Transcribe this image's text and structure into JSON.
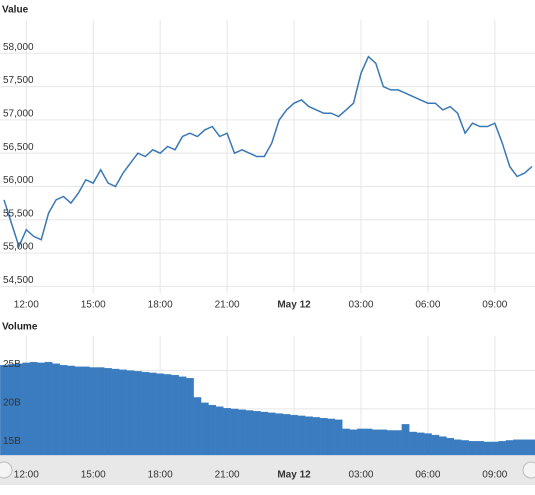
{
  "chart_data": [
    {
      "type": "line",
      "title": "Value",
      "categories": [
        null,
        null,
        null,
        "12:00",
        null,
        null,
        null,
        null,
        null,
        null,
        null,
        null,
        "15:00",
        null,
        null,
        null,
        null,
        null,
        null,
        null,
        null,
        "18:00",
        null,
        null,
        null,
        null,
        null,
        null,
        null,
        null,
        "21:00",
        null,
        null,
        null,
        null,
        null,
        null,
        null,
        null,
        "May 12",
        null,
        null,
        null,
        null,
        null,
        null,
        null,
        null,
        "03:00",
        null,
        null,
        null,
        null,
        null,
        null,
        null,
        null,
        "06:00",
        null,
        null,
        null,
        null,
        null,
        null,
        null,
        null,
        "09:00",
        null,
        null,
        null,
        null,
        null
      ],
      "series": [
        {
          "name": "Value",
          "color": "#3a78b5",
          "values": [
            55800,
            55450,
            55100,
            55350,
            55250,
            55200,
            55600,
            55800,
            55850,
            55750,
            55900,
            56100,
            56050,
            56250,
            56050,
            56000,
            56200,
            56350,
            56500,
            56450,
            56550,
            56500,
            56600,
            56550,
            56750,
            56800,
            56750,
            56850,
            56900,
            56750,
            56800,
            56500,
            56550,
            56500,
            56450,
            56450,
            56650,
            57000,
            57150,
            57250,
            57300,
            57200,
            57150,
            57100,
            57100,
            57050,
            57150,
            57250,
            57700,
            57950,
            57850,
            57500,
            57450,
            57450,
            57400,
            57350,
            57300,
            57250,
            57250,
            57150,
            57200,
            57100,
            56800,
            56950,
            56900,
            56900,
            56950,
            56650,
            56300,
            56150,
            56200,
            56300
          ]
        }
      ],
      "ylim": [
        54400,
        58500
      ],
      "yticks": [
        {
          "value": 54500,
          "label": "54,500"
        },
        {
          "value": 55000,
          "label": "55,000"
        },
        {
          "value": 55500,
          "label": "55,500"
        },
        {
          "value": 56000,
          "label": "56,000"
        },
        {
          "value": 56500,
          "label": "56,500"
        },
        {
          "value": 57000,
          "label": "57,000"
        },
        {
          "value": 57500,
          "label": "57,500"
        },
        {
          "value": 58000,
          "label": "58,000"
        }
      ],
      "grid": true
    },
    {
      "type": "bar",
      "title": "Volume",
      "categories": [
        null,
        null,
        null,
        "12:00",
        null,
        null,
        null,
        null,
        null,
        null,
        null,
        null,
        "15:00",
        null,
        null,
        null,
        null,
        null,
        null,
        null,
        null,
        "18:00",
        null,
        null,
        null,
        null,
        null,
        null,
        null,
        null,
        "21:00",
        null,
        null,
        null,
        null,
        null,
        null,
        null,
        null,
        "May 12",
        null,
        null,
        null,
        null,
        null,
        null,
        null,
        null,
        "03:00",
        null,
        null,
        null,
        null,
        null,
        null,
        null,
        null,
        "06:00",
        null,
        null,
        null,
        null,
        null,
        null,
        null,
        null,
        "09:00",
        null,
        null,
        null,
        null,
        null
      ],
      "series": [
        {
          "name": "Volume",
          "color": "#3a7cbf",
          "values": [
            25.7,
            25.8,
            25.9,
            26.0,
            26.1,
            26.0,
            26.1,
            25.9,
            25.7,
            25.6,
            25.5,
            25.5,
            25.4,
            25.4,
            25.3,
            25.2,
            25.1,
            25.0,
            24.9,
            24.8,
            24.7,
            24.6,
            24.5,
            24.4,
            24.2,
            24.0,
            21.5,
            20.8,
            20.5,
            20.3,
            20.1,
            20.0,
            19.9,
            19.8,
            19.7,
            19.6,
            19.5,
            19.4,
            19.3,
            19.2,
            19.1,
            19.0,
            18.9,
            18.8,
            18.7,
            18.6,
            17.4,
            17.3,
            17.4,
            17.4,
            17.3,
            17.3,
            17.2,
            17.2,
            18.0,
            17.0,
            16.9,
            16.8,
            16.6,
            16.4,
            16.2,
            16.0,
            15.9,
            15.8,
            15.8,
            15.7,
            15.7,
            15.8,
            15.9,
            16.0,
            16.0,
            16.0
          ]
        }
      ],
      "ylim": [
        14,
        29.5
      ],
      "yticks": [
        {
          "value": 15,
          "label": "15B"
        },
        {
          "value": 20,
          "label": "20B"
        },
        {
          "value": 25,
          "label": "25B"
        }
      ],
      "grid": true
    }
  ]
}
